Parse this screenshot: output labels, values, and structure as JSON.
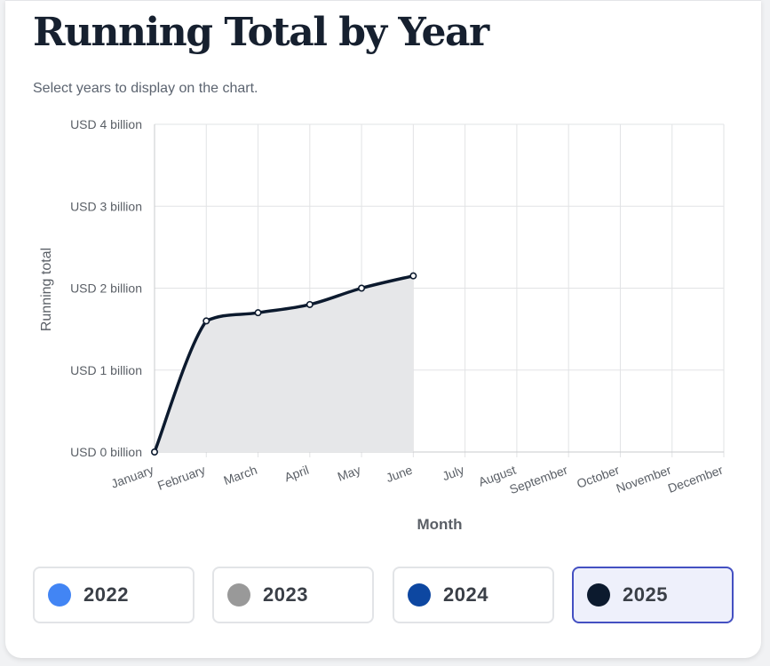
{
  "page": {
    "title": "Running Total by Year",
    "subtitle": "Select years to display on the chart."
  },
  "chart_data": {
    "type": "area",
    "xlabel": "Month",
    "ylabel": "Running total",
    "categories": [
      "January",
      "February",
      "March",
      "April",
      "May",
      "June",
      "July",
      "August",
      "September",
      "October",
      "November",
      "December"
    ],
    "y_ticks": [
      0,
      1,
      2,
      3,
      4
    ],
    "y_tick_labels": [
      "USD 0 billion",
      "USD 1 billion",
      "USD 2 billion",
      "USD 3 billion",
      "USD 4 billion"
    ],
    "ylim": [
      0,
      4
    ],
    "grid": true,
    "series": [
      {
        "name": "2025",
        "color": "#0c1a2e",
        "fill": "#e6e7e9",
        "values": [
          0,
          1.6,
          1.7,
          1.8,
          2.0,
          2.15,
          null,
          null,
          null,
          null,
          null,
          null
        ]
      }
    ]
  },
  "legend": {
    "items": [
      {
        "label": "2022",
        "color": "#4285f4",
        "selected": false
      },
      {
        "label": "2023",
        "color": "#999999",
        "selected": false
      },
      {
        "label": "2024",
        "color": "#0d47a1",
        "selected": false
      },
      {
        "label": "2025",
        "color": "#0c1a2e",
        "selected": true
      }
    ]
  }
}
